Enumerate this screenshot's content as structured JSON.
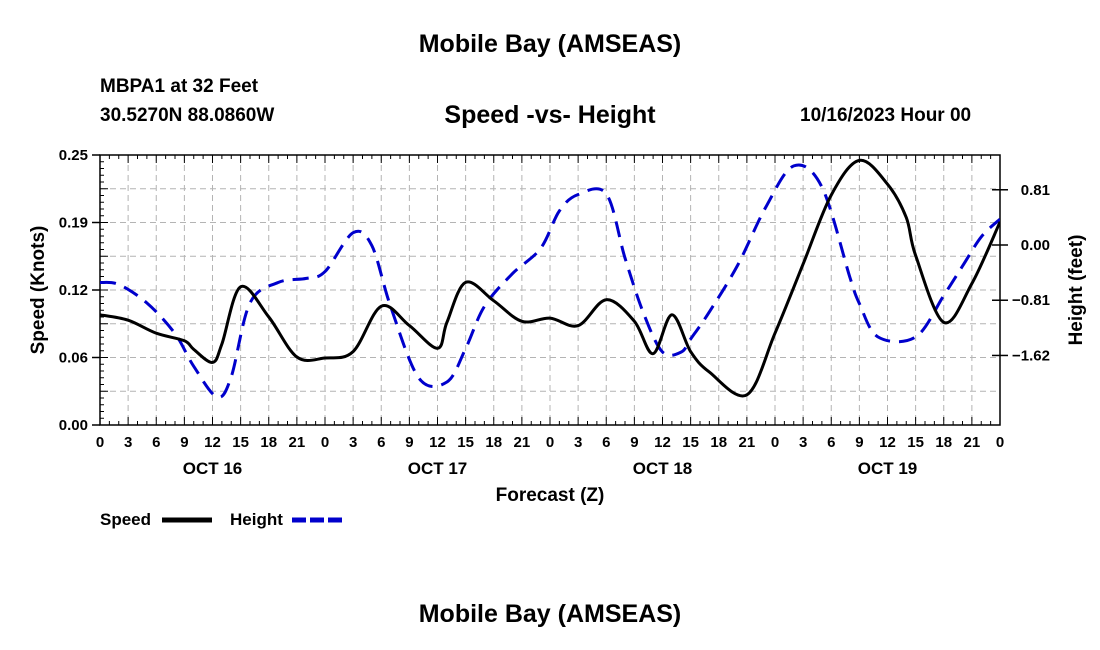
{
  "header": {
    "title": "Mobile Bay (AMSEAS)",
    "station": "MBPA1 at 32 Feet",
    "coords": "30.5270N  88.0860W",
    "subtitle": "Speed -vs- Height",
    "datetime": "10/16/2023 Hour 00"
  },
  "footer": {
    "title": "Mobile Bay (AMSEAS)"
  },
  "chart_data": {
    "type": "line",
    "title": "Speed -vs- Height",
    "xlabel": "Forecast (Z)",
    "ylabel": "Speed (Knots)",
    "y2label": "Height (feet)",
    "x_tick_labels": [
      "0",
      "3",
      "6",
      "9",
      "12",
      "15",
      "18",
      "21",
      "0",
      "3",
      "6",
      "9",
      "12",
      "15",
      "18",
      "21",
      "0",
      "3",
      "6",
      "9",
      "12",
      "15",
      "18",
      "21",
      "0",
      "3",
      "6",
      "9",
      "12",
      "15",
      "18",
      "21",
      "0"
    ],
    "day_labels": [
      {
        "label": "OCT 16",
        "hour": 12
      },
      {
        "label": "OCT 17",
        "hour": 36
      },
      {
        "label": "OCT 18",
        "hour": 60
      },
      {
        "label": "OCT 19",
        "hour": 84
      }
    ],
    "xlim": [
      0,
      96
    ],
    "ylim": [
      0,
      0.25
    ],
    "y_ticks": [
      "0.00",
      "0.06",
      "0.12",
      "0.19",
      "0.25"
    ],
    "y_tick_values": [
      0,
      0.0625,
      0.125,
      0.1875,
      0.25
    ],
    "y2lim": [
      -2.64,
      1.32
    ],
    "y2_ticks": [
      "0.81",
      "0.00",
      "−0.81",
      "−1.62"
    ],
    "y2_tick_values": [
      0.81,
      0,
      -0.81,
      -1.62
    ],
    "series": [
      {
        "name": "Speed",
        "color": "#000000",
        "dash": "solid",
        "x": [
          0,
          3,
          6,
          9,
          10,
          12,
          13,
          15,
          18,
          21,
          24,
          27,
          30,
          33,
          36,
          37,
          39,
          42,
          45,
          48,
          51,
          54,
          57,
          59,
          61,
          63,
          65,
          69,
          72,
          75,
          78,
          81,
          84,
          86,
          87,
          90,
          93,
          96
        ],
        "y": [
          0.102,
          0.097,
          0.085,
          0.078,
          0.07,
          0.058,
          0.075,
          0.128,
          0.1,
          0.063,
          0.062,
          0.068,
          0.11,
          0.092,
          0.071,
          0.095,
          0.132,
          0.115,
          0.096,
          0.099,
          0.092,
          0.116,
          0.096,
          0.066,
          0.102,
          0.068,
          0.049,
          0.028,
          0.085,
          0.149,
          0.213,
          0.245,
          0.223,
          0.192,
          0.157,
          0.095,
          0.131,
          0.188
        ]
      },
      {
        "name": "Height",
        "color": "#0000cc",
        "dash": "dashed",
        "x": [
          0,
          2,
          5,
          8,
          10,
          12.5,
          14,
          16,
          19,
          22,
          24,
          27,
          29,
          31,
          34,
          37,
          39,
          41,
          44,
          47,
          49,
          51,
          54,
          56,
          58,
          60,
          62,
          63,
          65,
          68,
          71,
          74,
          77,
          80,
          81,
          83,
          87,
          90,
          92,
          94,
          96
        ],
        "y": [
          -0.55,
          -0.58,
          -0.85,
          -1.3,
          -1.78,
          -2.23,
          -1.93,
          -0.85,
          -0.55,
          -0.49,
          -0.39,
          0.18,
          -0.01,
          -0.9,
          -1.95,
          -2.01,
          -1.52,
          -0.9,
          -0.42,
          -0.05,
          0.5,
          0.74,
          0.75,
          -0.19,
          -1.01,
          -1.57,
          -1.57,
          -1.38,
          -0.98,
          -0.3,
          0.55,
          1.16,
          0.85,
          -0.48,
          -0.86,
          -1.35,
          -1.35,
          -0.74,
          -0.31,
          0.12,
          0.38
        ]
      }
    ],
    "legend": [
      "Speed",
      "Height"
    ],
    "legend_position": "bottom-left",
    "grid": true
  }
}
